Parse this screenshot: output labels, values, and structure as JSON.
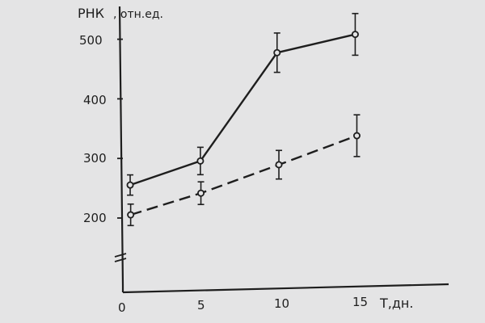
{
  "chart_data": {
    "type": "line",
    "ylabel": "РНК",
    "ylabel_unit": ", отн.ед.",
    "xlabel": "T,дн.",
    "x_ticks": [
      "0",
      "5",
      "10",
      "15"
    ],
    "y_ticks": [
      "200",
      "300",
      "400",
      "500"
    ],
    "xlim": [
      0,
      19
    ],
    "ylim": [
      200,
      500
    ],
    "axis_break": true,
    "grid": false,
    "series": [
      {
        "style": "solid",
        "x": [
          0.5,
          5,
          10,
          15
        ],
        "y": [
          255,
          292,
          470,
          497
        ],
        "err": [
          17,
          23,
          33,
          35
        ]
      },
      {
        "style": "dashed",
        "x": [
          0.5,
          5,
          10,
          15
        ],
        "y": [
          205,
          238,
          282,
          327
        ],
        "err": [
          18,
          19,
          24,
          35
        ]
      }
    ]
  }
}
